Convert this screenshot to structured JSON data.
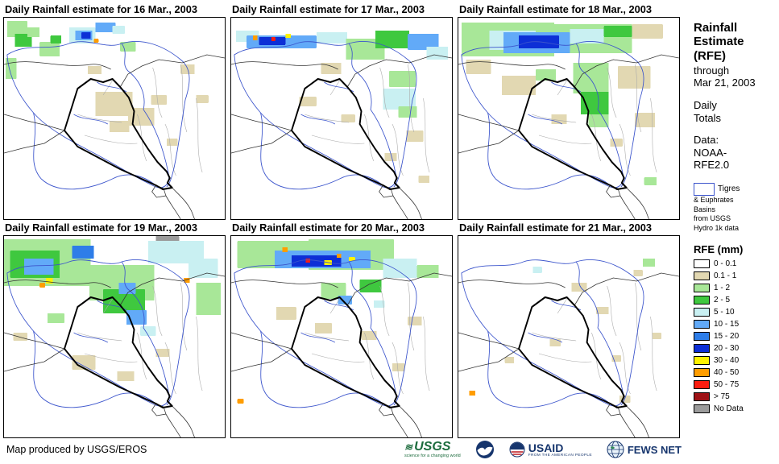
{
  "panels": [
    {
      "title": "Daily Rainfall estimate for 16 Mar., 2003",
      "patches": [
        [
          2,
          50,
          14,
          26,
          "1-2"
        ],
        [
          4,
          4,
          26,
          20,
          "1-2"
        ],
        [
          14,
          20,
          22,
          16,
          "2-5"
        ],
        [
          30,
          12,
          16,
          12,
          "1-2"
        ],
        [
          46,
          30,
          26,
          18,
          "1-2"
        ],
        [
          60,
          22,
          14,
          10,
          "2-5"
        ],
        [
          84,
          12,
          34,
          20,
          "5-10"
        ],
        [
          92,
          16,
          22,
          12,
          "10-15"
        ],
        [
          100,
          18,
          12,
          8,
          "20-30"
        ],
        [
          116,
          26,
          6,
          5,
          "40-50"
        ],
        [
          118,
          6,
          26,
          12,
          "10-15"
        ],
        [
          140,
          10,
          16,
          10,
          "5-10"
        ],
        [
          150,
          30,
          20,
          12,
          "1-2"
        ],
        [
          108,
          60,
          18,
          10,
          "0.1-1"
        ],
        [
          118,
          92,
          48,
          30,
          "0.1-1"
        ],
        [
          160,
          112,
          34,
          22,
          "0.1-1"
        ],
        [
          136,
          128,
          26,
          14,
          "0.1-1"
        ],
        [
          190,
          96,
          20,
          12,
          "0.1-1"
        ],
        [
          228,
          58,
          18,
          12,
          "0.1-1"
        ],
        [
          248,
          96,
          16,
          10,
          "0.1-1"
        ],
        [
          210,
          150,
          14,
          9,
          "0.1-1"
        ]
      ]
    },
    {
      "title": "Daily Rainfall estimate for 17 Mar., 2003",
      "patches": [
        [
          6,
          16,
          30,
          14,
          "5-10"
        ],
        [
          20,
          22,
          90,
          16,
          "10-15"
        ],
        [
          36,
          24,
          34,
          10,
          "20-30"
        ],
        [
          28,
          22,
          6,
          6,
          "40-50"
        ],
        [
          52,
          24,
          5,
          5,
          "50-75"
        ],
        [
          70,
          20,
          7,
          5,
          "30-40"
        ],
        [
          110,
          18,
          40,
          14,
          "5-10"
        ],
        [
          148,
          26,
          50,
          26,
          "1-2"
        ],
        [
          186,
          16,
          44,
          22,
          "2-5"
        ],
        [
          228,
          20,
          40,
          20,
          "10-15"
        ],
        [
          252,
          36,
          28,
          16,
          "5-10"
        ],
        [
          204,
          66,
          34,
          20,
          "1-2"
        ],
        [
          196,
          88,
          42,
          26,
          "5-10"
        ],
        [
          216,
          110,
          24,
          14,
          "1-2"
        ],
        [
          116,
          56,
          26,
          14,
          "0.1-1"
        ],
        [
          88,
          98,
          22,
          12,
          "0.1-1"
        ],
        [
          142,
          120,
          18,
          10,
          "0.1-1"
        ],
        [
          226,
          140,
          22,
          14,
          "0.1-1"
        ],
        [
          198,
          168,
          16,
          10,
          "0.1-1"
        ],
        [
          242,
          196,
          14,
          9,
          "0.1-1"
        ]
      ]
    },
    {
      "title": "Daily Rainfall estimate for 18 Mar., 2003",
      "patches": [
        [
          4,
          6,
          120,
          42,
          "1-2"
        ],
        [
          120,
          8,
          104,
          36,
          "1-2"
        ],
        [
          40,
          16,
          60,
          24,
          "5-10"
        ],
        [
          58,
          18,
          86,
          26,
          "10-15"
        ],
        [
          78,
          22,
          52,
          16,
          "20-30"
        ],
        [
          144,
          14,
          44,
          18,
          "5-10"
        ],
        [
          188,
          10,
          36,
          14,
          "2-5"
        ],
        [
          224,
          8,
          40,
          18,
          "0.1-1"
        ],
        [
          10,
          52,
          32,
          18,
          "0.1-1"
        ],
        [
          56,
          72,
          44,
          24,
          "0.1-1"
        ],
        [
          100,
          64,
          26,
          14,
          "1-2"
        ],
        [
          148,
          56,
          46,
          38,
          "1-2"
        ],
        [
          158,
          92,
          36,
          28,
          "2-5"
        ],
        [
          168,
          120,
          26,
          16,
          "1-2"
        ],
        [
          206,
          60,
          42,
          28,
          "0.1-1"
        ],
        [
          228,
          118,
          26,
          18,
          "0.1-1"
        ],
        [
          120,
          120,
          20,
          12,
          "0.1-1"
        ],
        [
          196,
          150,
          16,
          10,
          "0.1-1"
        ],
        [
          240,
          198,
          16,
          10,
          "1-2"
        ]
      ]
    },
    {
      "title": "Daily Rainfall estimate for 19 Mar., 2003",
      "patches": [
        [
          0,
          4,
          112,
          58,
          "1-2"
        ],
        [
          8,
          18,
          64,
          34,
          "2-5"
        ],
        [
          26,
          28,
          38,
          20,
          "10-15"
        ],
        [
          88,
          12,
          28,
          16,
          "15-20"
        ],
        [
          54,
          52,
          9,
          7,
          "30-40"
        ],
        [
          46,
          58,
          7,
          6,
          "40-50"
        ],
        [
          110,
          36,
          84,
          44,
          "1-2"
        ],
        [
          128,
          66,
          54,
          30,
          "2-5"
        ],
        [
          148,
          58,
          22,
          14,
          "10-15"
        ],
        [
          196,
          0,
          30,
          16,
          "nodata"
        ],
        [
          186,
          6,
          72,
          28,
          "5-10"
        ],
        [
          238,
          28,
          38,
          24,
          "5-10"
        ],
        [
          232,
          52,
          8,
          6,
          "40-50"
        ],
        [
          248,
          58,
          32,
          40,
          "1-2"
        ],
        [
          158,
          92,
          26,
          18,
          "10-15"
        ],
        [
          176,
          112,
          20,
          12,
          "5-10"
        ],
        [
          56,
          96,
          22,
          12,
          "1-2"
        ],
        [
          12,
          120,
          18,
          10,
          "0.1-1"
        ],
        [
          88,
          148,
          30,
          18,
          "0.1-1"
        ],
        [
          146,
          168,
          22,
          12,
          "0.1-1"
        ],
        [
          196,
          140,
          18,
          10,
          "0.1-1"
        ]
      ]
    },
    {
      "title": "Daily Rainfall estimate for 20 Mar., 2003",
      "patches": [
        [
          8,
          6,
          96,
          34,
          "1-2"
        ],
        [
          100,
          4,
          110,
          38,
          "1-2"
        ],
        [
          56,
          18,
          124,
          22,
          "10-15"
        ],
        [
          78,
          24,
          64,
          14,
          "20-30"
        ],
        [
          66,
          14,
          7,
          6,
          "40-50"
        ],
        [
          96,
          28,
          6,
          5,
          "50-75"
        ],
        [
          120,
          30,
          10,
          6,
          "30-40"
        ],
        [
          136,
          22,
          6,
          5,
          "40-50"
        ],
        [
          152,
          26,
          8,
          5,
          "30-40"
        ],
        [
          196,
          28,
          44,
          24,
          "5-10"
        ],
        [
          240,
          36,
          28,
          16,
          "1-2"
        ],
        [
          116,
          58,
          32,
          20,
          "1-2"
        ],
        [
          166,
          54,
          28,
          16,
          "2-5"
        ],
        [
          138,
          74,
          18,
          11,
          "10-15"
        ],
        [
          184,
          80,
          14,
          9,
          "5-10"
        ],
        [
          58,
          88,
          26,
          16,
          "0.1-1"
        ],
        [
          108,
          108,
          22,
          13,
          "0.1-1"
        ],
        [
          168,
          118,
          20,
          11,
          "0.1-1"
        ],
        [
          228,
          100,
          18,
          11,
          "0.1-1"
        ],
        [
          208,
          158,
          16,
          10,
          "0.1-1"
        ],
        [
          8,
          202,
          8,
          6,
          "40-50"
        ]
      ]
    },
    {
      "title": "Daily Rainfall estimate for 21 Mar., 2003",
      "patches": [
        [
          96,
          38,
          12,
          8,
          "5-10"
        ],
        [
          238,
          28,
          16,
          10,
          "1-2"
        ],
        [
          226,
          42,
          12,
          8,
          "0.1-1"
        ],
        [
          146,
          58,
          20,
          11,
          "0.1-1"
        ],
        [
          178,
          88,
          16,
          9,
          "0.1-1"
        ],
        [
          250,
          120,
          12,
          8,
          "0.1-1"
        ],
        [
          118,
          128,
          14,
          9,
          "0.1-1"
        ],
        [
          60,
          150,
          12,
          8,
          "0.1-1"
        ],
        [
          198,
          148,
          12,
          8,
          "0.1-1"
        ],
        [
          208,
          198,
          14,
          9,
          "0.1-1"
        ],
        [
          14,
          192,
          8,
          6,
          "40-50"
        ]
      ]
    }
  ],
  "palette": {
    "0-0.1": "#ffffff",
    "0.1-1": "#e2d8b2",
    "1-2": "#a8e798",
    "2-5": "#3fc83f",
    "5-10": "#c9f0f2",
    "10-15": "#62aaf8",
    "15-20": "#2e7de8",
    "20-30": "#0d2fd6",
    "30-40": "#fef200",
    "40-50": "#ff9d00",
    "50-75": "#fb1d10",
    "gt75": "#9e1216",
    "nodata": "#9b9b9b"
  },
  "sidebar": {
    "title_lines": [
      "Rainfall",
      "Estimate",
      "(RFE)"
    ],
    "through": "through",
    "date": "Mar 21, 2003",
    "totals_lines": [
      "Daily",
      "Totals"
    ],
    "data_label": "Data:",
    "data_lines": [
      "NOAA-",
      "RFE2.0"
    ],
    "basin_lines": [
      "Tigres",
      "& Euphrates",
      "Basins",
      "from USGS",
      "Hydro 1k data"
    ]
  },
  "legend": {
    "title": "RFE (mm)",
    "items": [
      {
        "label": "0 - 0.1",
        "key": "0-0.1"
      },
      {
        "label": "0.1 - 1",
        "key": "0.1-1"
      },
      {
        "label": "1 - 2",
        "key": "1-2"
      },
      {
        "label": "2 - 5",
        "key": "2-5"
      },
      {
        "label": "5 - 10",
        "key": "5-10"
      },
      {
        "label": "10 - 15",
        "key": "10-15"
      },
      {
        "label": "15 - 20",
        "key": "15-20"
      },
      {
        "label": "20 - 30",
        "key": "20-30"
      },
      {
        "label": "30 - 40",
        "key": "30-40"
      },
      {
        "label": "40 - 50",
        "key": "40-50"
      },
      {
        "label": "50 - 75",
        "key": "50-75"
      },
      {
        "label": "> 75",
        "key": "gt75"
      },
      {
        "label": "No Data",
        "key": "nodata"
      }
    ]
  },
  "footer": {
    "credit": "Map produced by USGS/EROS",
    "logos": {
      "usgs": {
        "name": "USGS",
        "tagline": "science for a changing world"
      },
      "noaa": {
        "name": "NOAA"
      },
      "usaid": {
        "name": "USAID",
        "tagline": "FROM THE AMERICAN PEOPLE"
      },
      "fews": {
        "name": "FEWS NET"
      }
    }
  }
}
